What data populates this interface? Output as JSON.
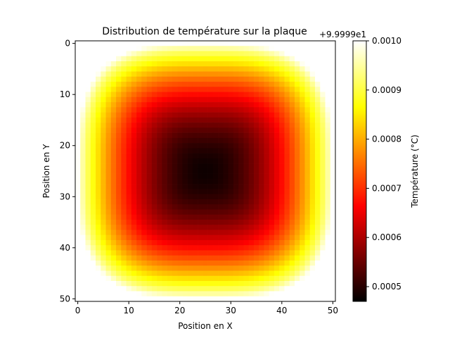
{
  "chart_data": {
    "type": "heatmap",
    "title": "Distribution de température sur la plaque",
    "xlabel": "Position en X",
    "ylabel": "Position en Y",
    "x_ticks": [
      0,
      10,
      20,
      30,
      40,
      50
    ],
    "y_ticks": [
      0,
      10,
      20,
      30,
      40,
      50
    ],
    "grid_size": [
      51,
      51
    ],
    "colormap": "hot",
    "center_cell": [
      25,
      25
    ],
    "colorbar": {
      "label": "Température (°C)",
      "offset_text": "+9.9999e1",
      "ticks": [
        "0.0010",
        "0.0009",
        "0.0008",
        "0.0007",
        "0.0006",
        "0.0005"
      ],
      "range": [
        0.00047,
        0.001
      ]
    }
  }
}
